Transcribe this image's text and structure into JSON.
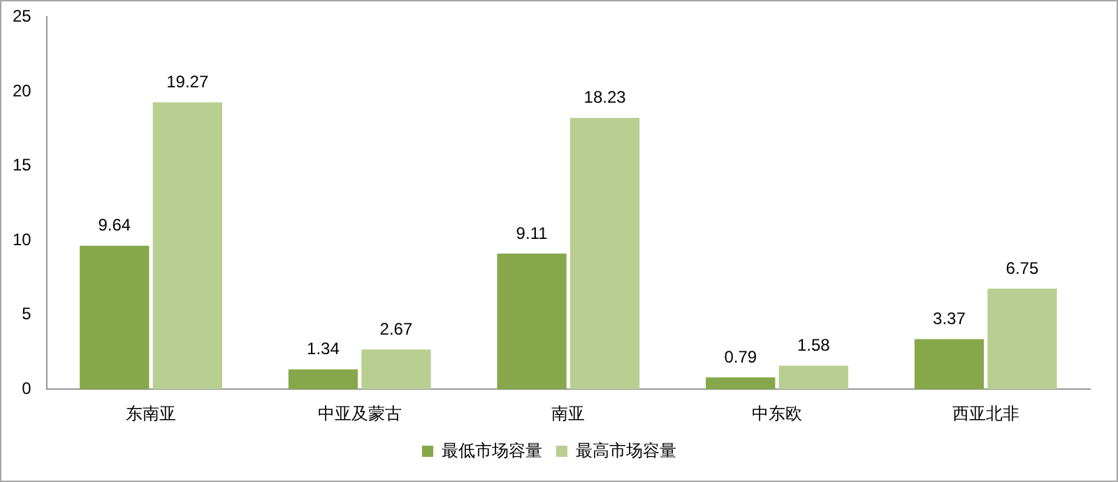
{
  "chart_data": {
    "type": "bar",
    "categories": [
      "东南亚",
      "中亚及蒙古",
      "南亚",
      "中东欧",
      "西亚北非"
    ],
    "series": [
      {
        "name": "最低市场容量",
        "color": "#86a84b",
        "values": [
          9.64,
          1.34,
          9.11,
          0.79,
          3.37
        ]
      },
      {
        "name": "最高市场容量",
        "color": "#b8cf91",
        "values": [
          19.27,
          2.67,
          18.23,
          1.58,
          6.75
        ]
      }
    ],
    "ylim": [
      0,
      25
    ],
    "yticks": [
      0,
      5,
      10,
      15,
      20,
      25
    ],
    "grid": false,
    "legend": "bottom",
    "data_labels": true
  }
}
